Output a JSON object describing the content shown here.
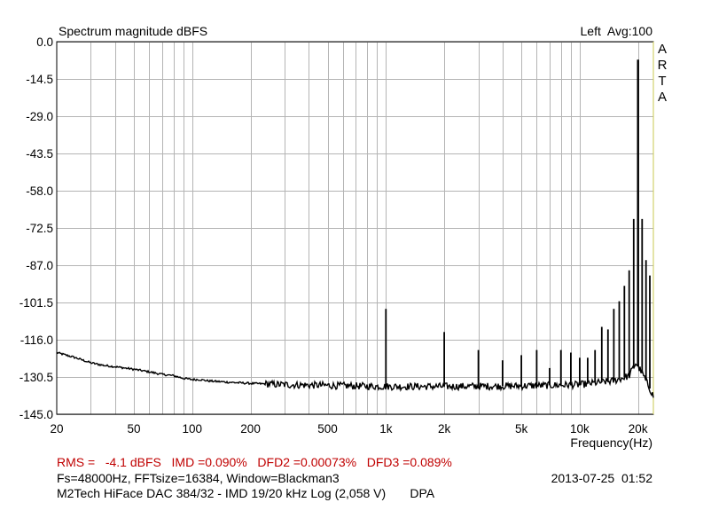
{
  "header": {
    "title": "Spectrum magnitude dBFS",
    "channel_avg": "Left  Avg:100",
    "brand_letters": [
      "A",
      "R",
      "T",
      "A"
    ]
  },
  "chart_data": {
    "type": "line",
    "title": "Spectrum magnitude dBFS",
    "xlabel": "Frequency(Hz)",
    "ylabel": "",
    "xscale": "log",
    "xlim": [
      20,
      24000
    ],
    "ylim": [
      -145,
      0
    ],
    "yticks": [
      "0.0",
      "-14.5",
      "-29.0",
      "-43.5",
      "-58.0",
      "-72.5",
      "-87.0",
      "-101.5",
      "-116.0",
      "-130.5",
      "-145.0"
    ],
    "xticks": [
      {
        "value": 20,
        "label": "20"
      },
      {
        "value": 50,
        "label": "50"
      },
      {
        "value": 100,
        "label": "100"
      },
      {
        "value": 200,
        "label": "200"
      },
      {
        "value": 500,
        "label": "500"
      },
      {
        "value": 1000,
        "label": "1k"
      },
      {
        "value": 2000,
        "label": "2k"
      },
      {
        "value": 5000,
        "label": "5k"
      },
      {
        "value": 10000,
        "label": "10k"
      },
      {
        "value": 20000,
        "label": "20k"
      }
    ],
    "grid": true,
    "noise_floor": {
      "x": [
        20,
        25,
        30,
        35,
        40,
        50,
        60,
        70,
        80,
        90,
        100,
        110,
        120,
        150,
        200,
        300,
        500,
        700,
        1000,
        2000,
        5000,
        10000,
        15000,
        18000,
        19500,
        21000,
        22000,
        23000,
        24000
      ],
      "y": [
        -121,
        -123,
        -125,
        -126,
        -126.5,
        -127.5,
        -128.5,
        -129.5,
        -130,
        -131,
        -131.5,
        -131.5,
        -132,
        -132.5,
        -133,
        -133.5,
        -133.8,
        -134,
        -134.2,
        -134.2,
        -134,
        -133.5,
        -132,
        -130,
        -125,
        -129,
        -132,
        -135,
        -138
      ]
    },
    "peaks": [
      {
        "f": 1000,
        "dB": -104
      },
      {
        "f": 2000,
        "dB": -113
      },
      {
        "f": 3000,
        "dB": -120
      },
      {
        "f": 4000,
        "dB": -124
      },
      {
        "f": 5000,
        "dB": -122
      },
      {
        "f": 6000,
        "dB": -120
      },
      {
        "f": 7000,
        "dB": -127
      },
      {
        "f": 8000,
        "dB": -120
      },
      {
        "f": 9000,
        "dB": -121
      },
      {
        "f": 10000,
        "dB": -123
      },
      {
        "f": 11000,
        "dB": -123
      },
      {
        "f": 12000,
        "dB": -120
      },
      {
        "f": 13000,
        "dB": -111
      },
      {
        "f": 14000,
        "dB": -112
      },
      {
        "f": 15000,
        "dB": -104
      },
      {
        "f": 16000,
        "dB": -101
      },
      {
        "f": 17000,
        "dB": -95
      },
      {
        "f": 18000,
        "dB": -89
      },
      {
        "f": 19000,
        "dB": -69
      },
      {
        "f": 20000,
        "dB": -7
      },
      {
        "f": 21000,
        "dB": -69
      },
      {
        "f": 22000,
        "dB": -85
      },
      {
        "f": 23000,
        "dB": -91
      }
    ]
  },
  "info": {
    "rms_line": "RMS =   -4.1 dBFS   IMD =0.090%   DFD2 =0.00073%   DFD3 =0.089%",
    "params_line": "Fs=48000Hz, FFTsize=16384, Window=Blackman3",
    "timestamp": "2013-07-25  01:52",
    "device_line": "M2Tech HiFace DAC 384/32 - IMD 19/20 kHz Log (2,058 V)       DPA"
  },
  "colors": {
    "grid": "#b4b4b4",
    "trace": "#000000",
    "stats_text": "#c00000",
    "right_border": "#c8c850"
  }
}
